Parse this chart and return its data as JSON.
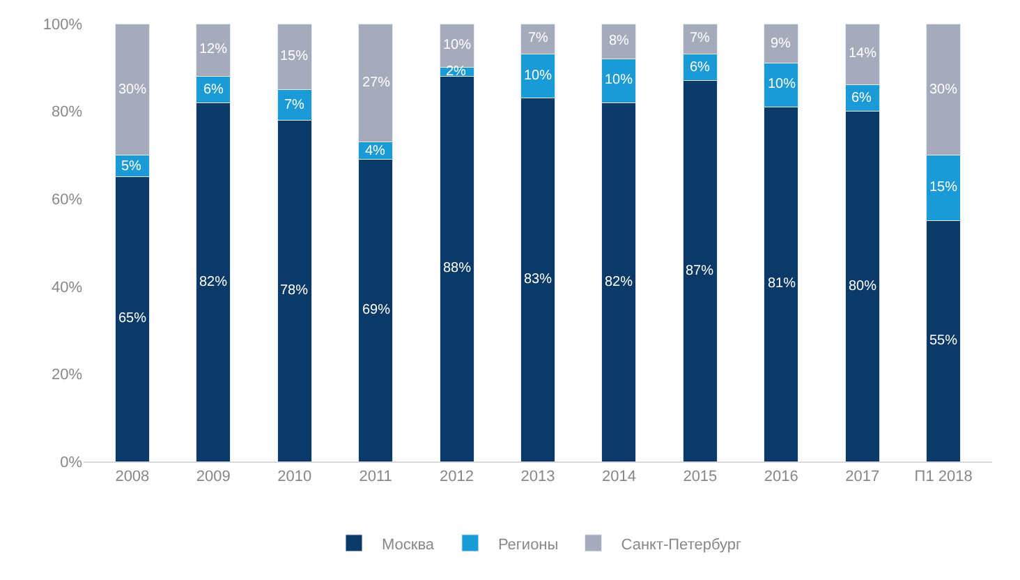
{
  "chart_data": {
    "type": "bar",
    "stacked": true,
    "categories": [
      "2008",
      "2009",
      "2010",
      "2011",
      "2012",
      "2013",
      "2014",
      "2015",
      "2016",
      "2017",
      "П1 2018"
    ],
    "series": [
      {
        "name": "Москва",
        "color": "#0b3a68",
        "values": [
          65,
          82,
          78,
          69,
          88,
          83,
          82,
          87,
          81,
          80,
          55
        ],
        "value_labels": [
          "65%",
          "82%",
          "78%",
          "69%",
          "88%",
          "83%",
          "82%",
          "87%",
          "81%",
          "80%",
          "55%"
        ]
      },
      {
        "name": "Регионы",
        "color": "#1a9ad6",
        "values": [
          5,
          6,
          7,
          4,
          2,
          10,
          10,
          6,
          10,
          6,
          15
        ],
        "value_labels": [
          "5%",
          "6%",
          "7%",
          "4%",
          "2%",
          "10%",
          "10%",
          "6%",
          "10%",
          "6%",
          "15%"
        ]
      },
      {
        "name": "Санкт-Петербург",
        "color": "#a5abbb",
        "values": [
          30,
          12,
          15,
          27,
          10,
          7,
          8,
          7,
          9,
          14,
          30
        ],
        "value_labels": [
          "30%",
          "12%",
          "15%",
          "27%",
          "10%",
          "7%",
          "8%",
          "7%",
          "9%",
          "14%",
          "30%"
        ]
      }
    ],
    "ylim": [
      0,
      100
    ],
    "yticks": [
      {
        "value": 0,
        "label": "0%"
      },
      {
        "value": 20,
        "label": "20%"
      },
      {
        "value": 40,
        "label": "40%"
      },
      {
        "value": 60,
        "label": "60%"
      },
      {
        "value": 80,
        "label": "80%"
      },
      {
        "value": 100,
        "label": "100%"
      }
    ],
    "legend": "bottom"
  }
}
